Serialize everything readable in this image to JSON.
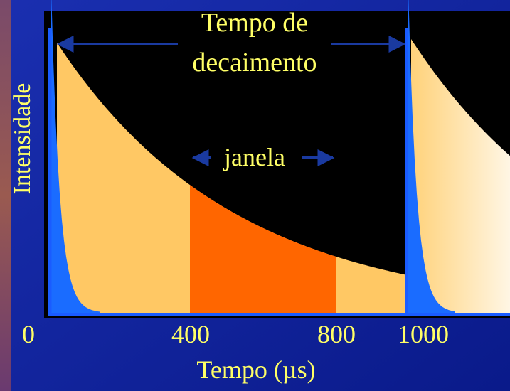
{
  "title": {
    "line1": "Tempo de",
    "line2": "decaimento"
  },
  "window_label": "janela",
  "y_axis_label": "Intensidade",
  "x_axis_label": "Tempo (µs)",
  "x_tick_labels": [
    "0",
    "400",
    "800",
    "1000"
  ]
}
